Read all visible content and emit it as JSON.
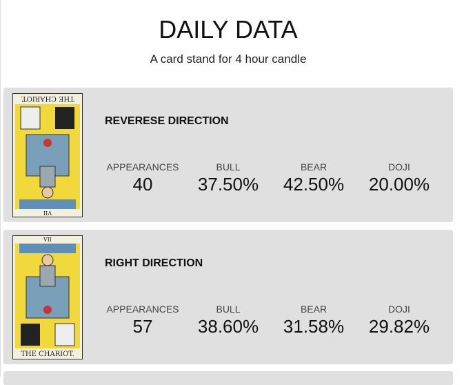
{
  "header": {
    "title": "DAILY DATA",
    "subtitle": "A card stand for 4 hour candle"
  },
  "cards": [
    {
      "title": "REVERESE DIRECTION",
      "reversed": true,
      "card_name": "THE CHARIOT.",
      "card_numeral": "VII",
      "stats": [
        {
          "label": "APPEARANCES",
          "value": "40"
        },
        {
          "label": "BULL",
          "value": "37.50%"
        },
        {
          "label": "BEAR",
          "value": "42.50%"
        },
        {
          "label": "DOJI",
          "value": "20.00%"
        }
      ]
    },
    {
      "title": "RIGHT DIRECTION",
      "reversed": false,
      "card_name": "THE CHARIOT.",
      "card_numeral": "VII",
      "stats": [
        {
          "label": "APPEARANCES",
          "value": "57"
        },
        {
          "label": "BULL",
          "value": "38.60%"
        },
        {
          "label": "BEAR",
          "value": "31.58%"
        },
        {
          "label": "DOJI",
          "value": "29.82%"
        }
      ]
    }
  ]
}
